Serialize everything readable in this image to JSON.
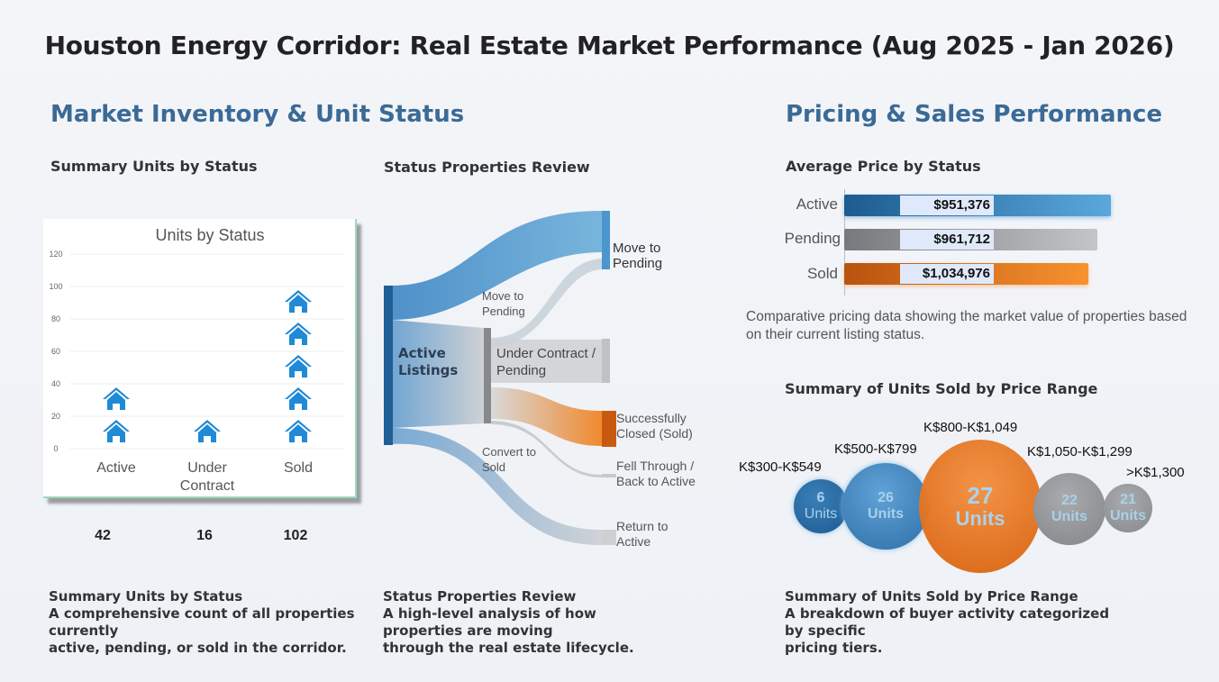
{
  "title": "Houston Energy Corridor: Real Estate Market Performance (Aug 2025 - Jan 2026)",
  "sections": {
    "left": "Market Inventory & Unit Status",
    "right": "Pricing & Sales Performance"
  },
  "subtitles": {
    "summary": "Summary Units by Status",
    "review": "Status Properties Review",
    "avg_price": "Average Price by Status",
    "sold_range": "Summary of Units Sold by Price Range"
  },
  "chart_data": [
    {
      "type": "bar",
      "title": "Units by Status",
      "categories": [
        "Active",
        "Under Contract",
        "Sold"
      ],
      "values": [
        42,
        16,
        102
      ],
      "value_labels": [
        "42",
        "16",
        "102"
      ],
      "ylim": [
        0,
        120
      ],
      "yticks": [
        "0",
        "20",
        "40",
        "60",
        "80",
        "100",
        "120"
      ],
      "icon": "house-icon",
      "color": "#1f8ad6"
    },
    {
      "type": "sankey",
      "nodes": [
        "Active Listings",
        "Under Contract / Pending",
        "Move to Pending",
        "Successfully Closed (Sold)",
        "Fell Through / Back to Active",
        "Return to Active"
      ],
      "link_labels": [
        "Move to Pending",
        "Convert to Sold"
      ]
    },
    {
      "type": "bar",
      "orientation": "horizontal",
      "title": "Average Price by Status",
      "categories": [
        "Active",
        "Pending",
        "Sold"
      ],
      "values": [
        951376,
        961712,
        1034976
      ],
      "value_labels": [
        "$951,376",
        "$961,712",
        "$1,034,976"
      ],
      "colors": [
        "#2f78b5",
        "#9a9a9a",
        "#ec7a22"
      ]
    },
    {
      "type": "bubble",
      "title": "Summary of Units Sold by Price Range",
      "categories": [
        "K$300-K$549",
        "K$500-K$799",
        "K$800-K$1,049",
        "K$1,050-K$1,299",
        ">K$1,300"
      ],
      "values": [
        6,
        26,
        27,
        22,
        21
      ],
      "unit_label": "Units"
    }
  ],
  "price_caption": "Comparative pricing data showing the market value of properties based on their current listing status.",
  "footers": {
    "summary": [
      "Summary Units by Status",
      "A comprehensive count of all properties currently",
      "active, pending, or sold in the corridor."
    ],
    "review": [
      "Status Properties Review",
      "A high-level analysis of how properties are moving",
      "through the real estate lifecycle."
    ],
    "sold": [
      "Summary of Units Sold by Price Range",
      "A breakdown of buyer activity categorized by specific",
      "pricing tiers."
    ]
  }
}
